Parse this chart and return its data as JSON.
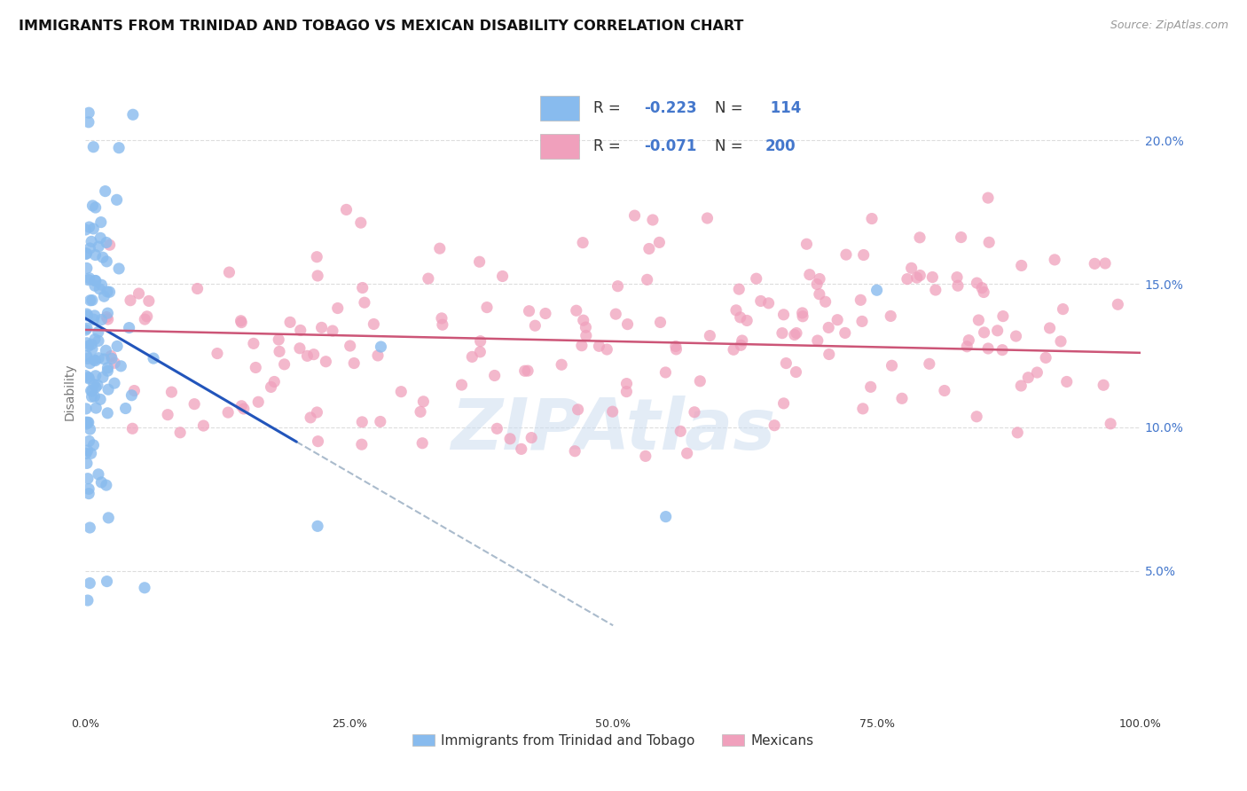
{
  "title": "IMMIGRANTS FROM TRINIDAD AND TOBAGO VS MEXICAN DISABILITY CORRELATION CHART",
  "source": "Source: ZipAtlas.com",
  "ylabel": "Disability",
  "yticks": [
    0.05,
    0.1,
    0.15,
    0.2
  ],
  "ytick_labels": [
    "5.0%",
    "10.0%",
    "15.0%",
    "20.0%"
  ],
  "xticks": [
    0.0,
    0.25,
    0.5,
    0.75,
    1.0
  ],
  "xtick_labels": [
    "0.0%",
    "25.0%",
    "50.0%",
    "75.0%",
    "100.0%"
  ],
  "blue_scatter_color": "#88bbee",
  "pink_scatter_color": "#f0a0bc",
  "blue_line_color": "#2255bb",
  "pink_line_color": "#cc5577",
  "dashed_line_color": "#aabbcc",
  "watermark": "ZIPAtlas",
  "watermark_color": "#ccddf0",
  "background_color": "#ffffff",
  "grid_color": "#dddddd",
  "xlim": [
    0.0,
    1.0
  ],
  "ylim": [
    0.0,
    0.225
  ],
  "blue_R": -0.223,
  "blue_N": 114,
  "pink_R": -0.071,
  "pink_N": 200,
  "legend_label_blue": "Immigrants from Trinidad and Tobago",
  "legend_label_pink": "Mexicans",
  "title_fontsize": 11.5,
  "source_fontsize": 9,
  "axis_label_color": "#4477cc",
  "text_color": "#333333",
  "blue_line_start_x": 0.0,
  "blue_line_start_y": 0.138,
  "blue_line_solid_end_x": 0.2,
  "blue_line_solid_end_y": 0.095,
  "blue_line_dash_end_x": 0.5,
  "blue_line_dash_end_y": 0.031,
  "pink_line_start_x": 0.0,
  "pink_line_start_y": 0.134,
  "pink_line_end_x": 1.0,
  "pink_line_end_y": 0.126
}
